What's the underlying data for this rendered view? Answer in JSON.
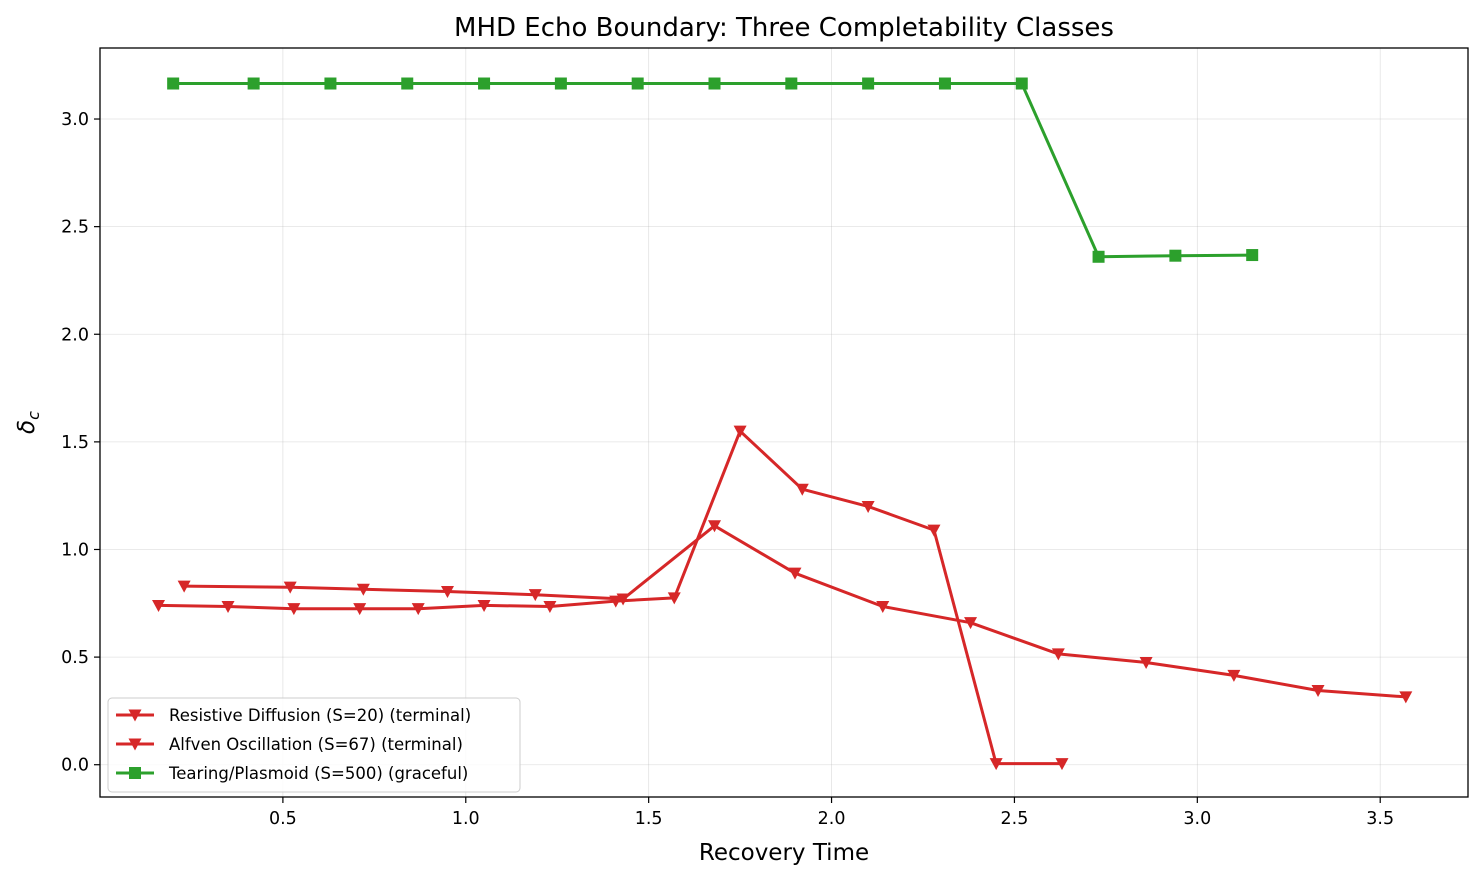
{
  "chart_data": {
    "type": "line",
    "title": "MHD Echo Boundary: Three Completability Classes",
    "xlabel": "Recovery Time",
    "ylabel": "δ",
    "ylabel_subscript": "c",
    "xlim": [
      0.0,
      3.74
    ],
    "ylim": [
      -0.15,
      3.33
    ],
    "xticks": [
      0.5,
      1.0,
      1.5,
      2.0,
      2.5,
      3.0,
      3.5
    ],
    "xtick_labels": [
      "0.5",
      "1.0",
      "1.5",
      "2.0",
      "2.5",
      "3.0",
      "3.5"
    ],
    "yticks": [
      0.0,
      0.5,
      1.0,
      1.5,
      2.0,
      2.5,
      3.0
    ],
    "ytick_labels": [
      "0.0",
      "0.5",
      "1.0",
      "1.5",
      "2.0",
      "2.5",
      "3.0"
    ],
    "grid": true,
    "legend_position": "lower-left",
    "series": [
      {
        "name": "Resistive Diffusion (S=20) (terminal)",
        "color": "#d62728",
        "marker": "triangle-down",
        "x": [
          0.16,
          0.35,
          0.53,
          0.71,
          0.87,
          1.05,
          1.23,
          1.41,
          1.57,
          1.75,
          1.92,
          2.1,
          2.28,
          2.45,
          2.63
        ],
        "y": [
          0.74,
          0.735,
          0.725,
          0.725,
          0.725,
          0.74,
          0.735,
          0.76,
          0.775,
          1.55,
          1.28,
          1.2,
          1.09,
          0.005,
          0.005
        ]
      },
      {
        "name": "Alfven Oscillation (S=67) (terminal)",
        "color": "#d62728",
        "marker": "triangle-down",
        "x": [
          0.23,
          0.52,
          0.72,
          0.95,
          1.19,
          1.43,
          1.68,
          1.9,
          2.14,
          2.38,
          2.62,
          2.86,
          3.1,
          3.33,
          3.57
        ],
        "y": [
          0.83,
          0.825,
          0.815,
          0.805,
          0.79,
          0.77,
          1.11,
          0.89,
          0.735,
          0.66,
          0.515,
          0.475,
          0.415,
          0.345,
          0.315
        ]
      },
      {
        "name": "Tearing/Plasmoid (S=500) (graceful)",
        "color": "#2ca02c",
        "marker": "square",
        "x": [
          0.2,
          0.42,
          0.63,
          0.84,
          1.05,
          1.26,
          1.47,
          1.68,
          1.89,
          2.1,
          2.31,
          2.52,
          2.73,
          2.94,
          3.15
        ],
        "y": [
          3.165,
          3.165,
          3.165,
          3.165,
          3.165,
          3.165,
          3.165,
          3.165,
          3.165,
          3.165,
          3.165,
          3.165,
          2.36,
          2.365,
          2.368
        ]
      }
    ]
  }
}
